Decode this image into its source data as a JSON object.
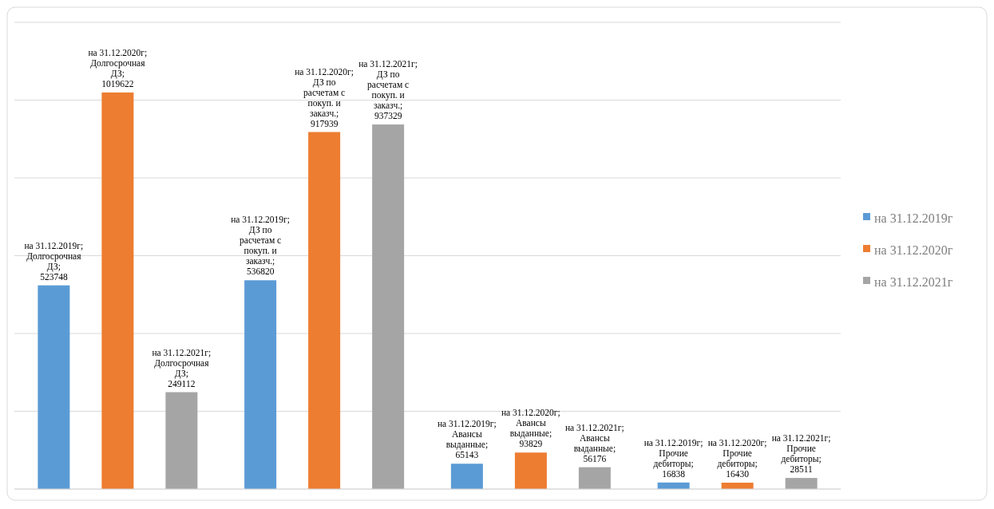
{
  "chart_data": {
    "type": "bar",
    "categories": [
      null,
      null,
      null,
      null
    ],
    "ylim": [
      0,
      1200000
    ],
    "yticks": [
      {
        "value": 0,
        "label": null
      },
      {
        "value": 200000,
        "label": null
      },
      {
        "value": 400000,
        "label": null
      },
      {
        "value": 600000,
        "label": null
      },
      {
        "value": 800000,
        "label": null
      },
      {
        "value": 1000000,
        "label": null
      },
      {
        "value": 1200000,
        "label": null
      }
    ],
    "grid": "y",
    "legend": "right",
    "series": [
      {
        "name": "на 31.12.2019г",
        "color": "#5b9bd5",
        "values": [
          523748,
          536820,
          65143,
          16838
        ],
        "value_labels": [
          "на 31.12.2019г; Долгосрочная ДЗ; 523748",
          "на 31.12.2019г; ДЗ по расчетам с покуп. и заказч.; 536820",
          "на 31.12.2019г; Авансы выданные; 65143",
          "на 31.12.2019г; Прочие дебиторы; 16838"
        ]
      },
      {
        "name": "на 31.12.2020г",
        "color": "#ed7d31",
        "values": [
          1019622,
          917939,
          93829,
          16430
        ],
        "value_labels": [
          "на 31.12.2020г; Долгосрочная ДЗ; 1019622",
          "на 31.12.2020г; ДЗ по расчетам с покуп. и заказч.; 917939",
          "на 31.12.2020г; Авансы выданные; 93829",
          "на 31.12.2020г; Прочие дебиторы; 16430"
        ]
      },
      {
        "name": "на 31.12.2021г",
        "color": "#a5a5a5",
        "values": [
          249112,
          937329,
          56176,
          28511
        ],
        "value_labels": [
          "на 31.12.2021г; Долгосрочная ДЗ; 249112",
          "на 31.12.2021г; ДЗ по расчетам с покуп. и заказч.; 937329",
          "на 31.12.2021г; Авансы выданные; 56176",
          "на 31.12.2021г; Прочие дебиторы; 28511"
        ]
      }
    ]
  }
}
